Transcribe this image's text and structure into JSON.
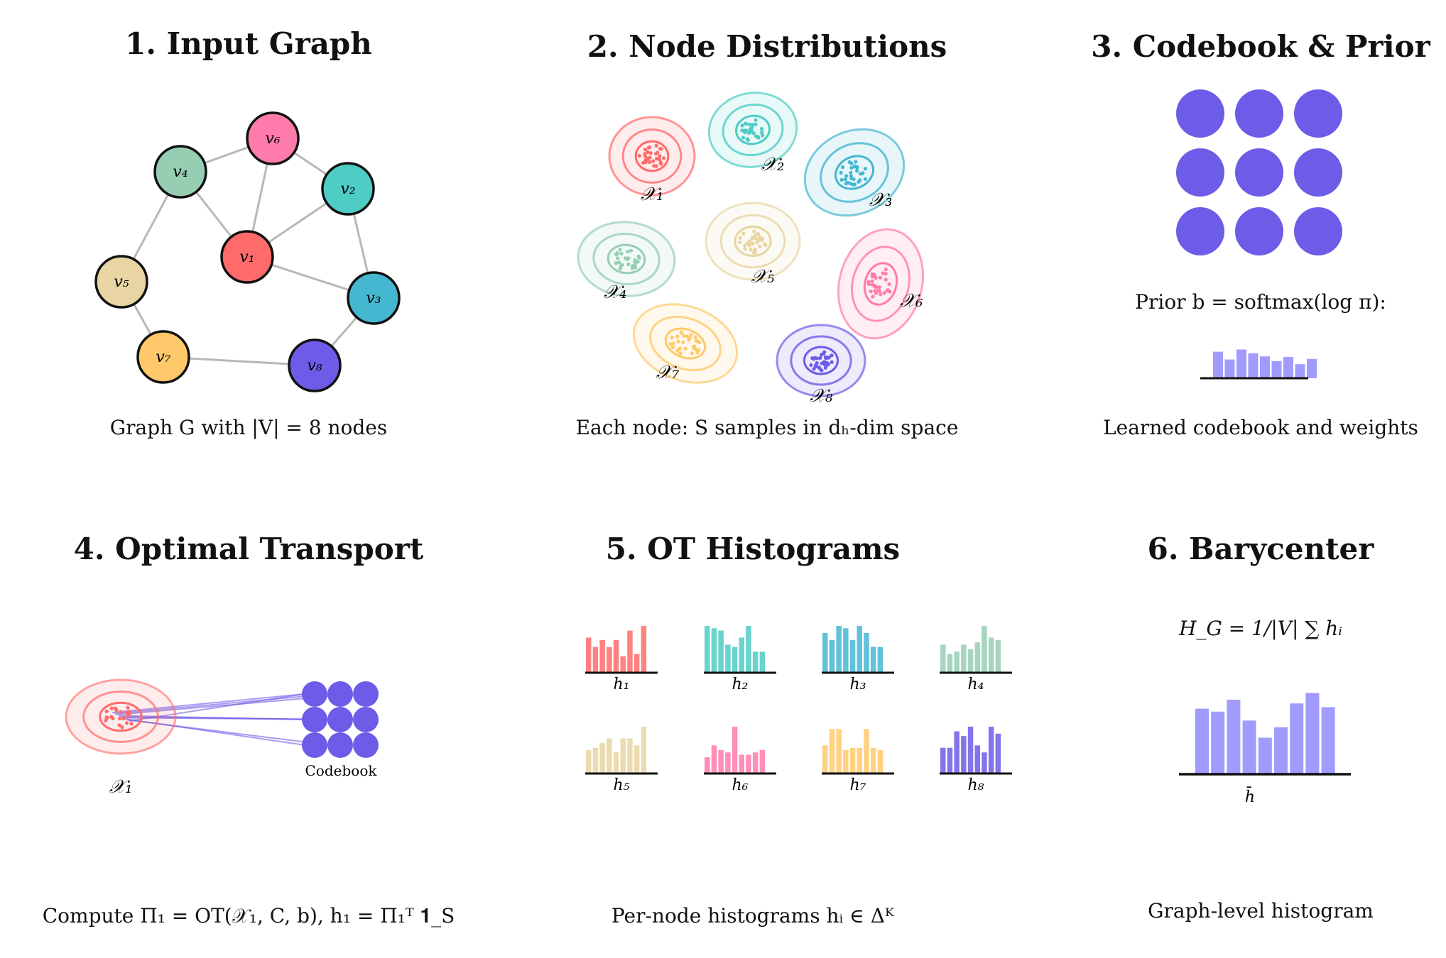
{
  "panels": {
    "p1": {
      "title": "1.  Input Graph",
      "caption": "Graph G with |V| = 8 nodes"
    },
    "p2": {
      "title": "2.  Node Distributions",
      "caption": "Each node: S samples in dₕ-dim space"
    },
    "p3": {
      "title": "3.  Codebook & Prior",
      "prior_label": "Prior b = softmax(log π):",
      "caption": "Learned codebook and weights"
    },
    "p4": {
      "title": "4.  Optimal Transport",
      "dist_label": "𝒳₁",
      "codebook_label": "Codebook",
      "caption": "Compute Π₁ = OT(𝒳₁, C, b),  h₁ = Π₁ᵀ 𝟏_S"
    },
    "p5": {
      "title": "5.  OT Histograms",
      "caption": "Per-node histograms hᵢ ∈ Δᴷ"
    },
    "p6": {
      "title": "6.  Barycenter",
      "formula": "H_G = 1/|V| ∑ hᵢ",
      "bar_label": "h̄",
      "caption": "Graph-level histogram"
    }
  },
  "colors": {
    "v1": "#FF6B6B",
    "v2": "#4ECDC4",
    "v3": "#45B7D1",
    "v4": "#96CEB4",
    "v5": "#E8D5A3",
    "v6": "#FF7BAC",
    "v7": "#FFC96B",
    "v8": "#6C5CE7",
    "codebook": "#6C5CE7",
    "bars": "#A29BFE",
    "edge": "#b8b8b8"
  },
  "graph": {
    "nodes": [
      {
        "id": "v1",
        "label": "v₁"
      },
      {
        "id": "v2",
        "label": "v₂"
      },
      {
        "id": "v3",
        "label": "v₃"
      },
      {
        "id": "v4",
        "label": "v₄"
      },
      {
        "id": "v5",
        "label": "v₅"
      },
      {
        "id": "v6",
        "label": "v₆"
      },
      {
        "id": "v7",
        "label": "v₇"
      },
      {
        "id": "v8",
        "label": "v₈"
      }
    ],
    "edges": [
      [
        "v1",
        "v4"
      ],
      [
        "v1",
        "v6"
      ],
      [
        "v1",
        "v2"
      ],
      [
        "v1",
        "v3"
      ],
      [
        "v4",
        "v6"
      ],
      [
        "v6",
        "v2"
      ],
      [
        "v2",
        "v3"
      ],
      [
        "v4",
        "v5"
      ],
      [
        "v5",
        "v7"
      ],
      [
        "v7",
        "v8"
      ],
      [
        "v8",
        "v3"
      ]
    ]
  },
  "distributions": [
    {
      "id": "v1",
      "label": "𝒳₁"
    },
    {
      "id": "v2",
      "label": "𝒳₂"
    },
    {
      "id": "v3",
      "label": "𝒳₃"
    },
    {
      "id": "v4",
      "label": "𝒳₄"
    },
    {
      "id": "v5",
      "label": "𝒳₅"
    },
    {
      "id": "v6",
      "label": "𝒳₆"
    },
    {
      "id": "v7",
      "label": "𝒳₇"
    },
    {
      "id": "v8",
      "label": "𝒳₈"
    }
  ],
  "prior_weights": [
    0.85,
    0.6,
    0.92,
    0.8,
    0.7,
    0.55,
    0.68,
    0.45,
    0.62
  ],
  "histograms": [
    {
      "id": "v1",
      "label": "h₁",
      "values": [
        0.75,
        0.55,
        0.7,
        0.55,
        0.7,
        0.35,
        0.9,
        0.4,
        1.0
      ]
    },
    {
      "id": "v2",
      "label": "h₂",
      "values": [
        1.0,
        0.95,
        0.9,
        0.6,
        0.55,
        0.75,
        1.0,
        0.45,
        0.45
      ]
    },
    {
      "id": "v3",
      "label": "h₃",
      "values": [
        0.85,
        0.7,
        1.0,
        0.95,
        0.7,
        1.0,
        0.85,
        0.55,
        0.55
      ]
    },
    {
      "id": "v4",
      "label": "h₄",
      "values": [
        0.6,
        0.4,
        0.45,
        0.6,
        0.5,
        0.65,
        1.0,
        0.75,
        0.7
      ]
    },
    {
      "id": "v5",
      "label": "h₅",
      "values": [
        0.5,
        0.55,
        0.65,
        0.75,
        0.45,
        0.75,
        0.75,
        0.6,
        1.0
      ]
    },
    {
      "id": "v6",
      "label": "h₆",
      "values": [
        0.35,
        0.6,
        0.5,
        0.45,
        1.0,
        0.4,
        0.4,
        0.45,
        0.5
      ]
    },
    {
      "id": "v7",
      "label": "h₇",
      "values": [
        0.6,
        0.95,
        0.95,
        0.5,
        0.55,
        0.55,
        0.95,
        0.55,
        0.5
      ]
    },
    {
      "id": "v8",
      "label": "h₈",
      "values": [
        0.55,
        0.55,
        0.9,
        0.8,
        1.0,
        0.6,
        0.45,
        1.0,
        0.85
      ]
    }
  ],
  "barycenter": [
    0.88,
    0.84,
    1.0,
    0.72,
    0.49,
    0.63,
    0.95,
    1.09,
    0.9
  ]
}
